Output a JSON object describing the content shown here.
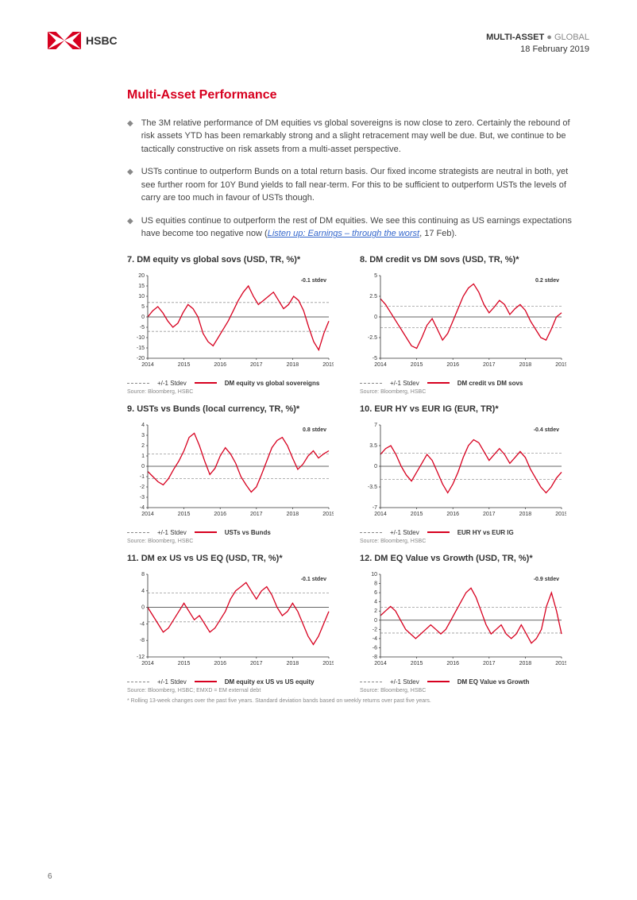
{
  "header": {
    "brand": "HSBC",
    "category_bold": "MULTI-ASSET",
    "category_light": "GLOBAL",
    "date": "18 February 2019"
  },
  "section_title": "Multi-Asset Performance",
  "bullets": [
    {
      "text": "The 3M relative performance of DM equities vs global sovereigns is now close to zero. Certainly the rebound of risk assets YTD has been remarkably strong and a slight retracement may well be due. But, we continue to be tactically constructive on risk assets from a multi-asset perspective."
    },
    {
      "text": "USTs continue to outperform Bunds on a total return basis. Our fixed income strategists are neutral in both, yet see further room for 10Y Bund yields to fall near-term. For this to be sufficient to outperform USTs the levels of carry are too much in favour of USTs though."
    },
    {
      "text_pre": "US equities continue to outperform the rest of DM equities. We see this continuing as US earnings expectations have become too negative now (",
      "link_text": "Listen up: Earnings – through the worst",
      "text_post": ", 17 Feb)."
    }
  ],
  "charts": [
    {
      "title": "7. DM equity vs global sovs (USD, TR, %)*",
      "stdev_label": "-0.1 stdev",
      "ylim": [
        -20,
        20
      ],
      "yticks": [
        -20,
        -15,
        -10,
        -5,
        0,
        5,
        10,
        15,
        20
      ],
      "xlim": [
        2014,
        2019
      ],
      "xticks": [
        2014,
        2015,
        2016,
        2017,
        2018,
        2019
      ],
      "band": [
        -7,
        7
      ],
      "line_color": "#d7001f",
      "band_color": "#999999",
      "grid_color": "#cccccc",
      "data": [
        0,
        3,
        5,
        2,
        -2,
        -5,
        -3,
        2,
        6,
        4,
        0,
        -8,
        -12,
        -14,
        -10,
        -6,
        -2,
        3,
        8,
        12,
        15,
        10,
        6,
        8,
        10,
        12,
        8,
        4,
        6,
        10,
        8,
        3,
        -5,
        -12,
        -16,
        -8,
        -2
      ],
      "legend_dash": "+/-1 Stdev",
      "legend_solid": "DM equity vs global sovereigns",
      "source": "Source: Bloomberg, HSBC"
    },
    {
      "title": "8. DM credit vs DM sovs (USD, TR, %)*",
      "stdev_label": "0.2 stdev",
      "ylim": [
        -5,
        5
      ],
      "yticks": [
        -5.0,
        -2.5,
        0.0,
        2.5,
        5.0
      ],
      "xlim": [
        2014,
        2019
      ],
      "xticks": [
        2014,
        2015,
        2016,
        2017,
        2018,
        2019
      ],
      "band": [
        -1.3,
        1.3
      ],
      "line_color": "#d7001f",
      "band_color": "#999999",
      "grid_color": "#cccccc",
      "data": [
        2.2,
        1.5,
        0.5,
        -0.5,
        -1.5,
        -2.5,
        -3.5,
        -3.8,
        -2.5,
        -1,
        -0.2,
        -1.5,
        -2.8,
        -2,
        -0.5,
        1,
        2.5,
        3.5,
        4,
        3,
        1.5,
        0.5,
        1.2,
        2,
        1.5,
        0.3,
        1,
        1.5,
        0.8,
        -0.5,
        -1.5,
        -2.5,
        -2.8,
        -1.5,
        0,
        0.5
      ],
      "legend_dash": "+/-1 Stdev",
      "legend_solid": "DM credit vs DM sovs",
      "source": "Source: Bloomberg, HSBC"
    },
    {
      "title": "9. USTs vs Bunds (local currency, TR, %)*",
      "stdev_label": "0.8 stdev",
      "ylim": [
        -4,
        4
      ],
      "yticks": [
        -4,
        -3,
        -2,
        -1,
        0,
        1,
        2,
        3,
        4
      ],
      "xlim": [
        2014,
        2019
      ],
      "xticks": [
        2014,
        2015,
        2016,
        2017,
        2018,
        2019
      ],
      "band": [
        -1.2,
        1.2
      ],
      "line_color": "#d7001f",
      "band_color": "#999999",
      "grid_color": "#cccccc",
      "data": [
        -0.5,
        -1,
        -1.5,
        -1.8,
        -1.2,
        -0.3,
        0.5,
        1.5,
        2.8,
        3.2,
        2,
        0.5,
        -0.8,
        -0.2,
        1,
        1.8,
        1.2,
        0.3,
        -1,
        -1.8,
        -2.5,
        -2,
        -0.8,
        0.5,
        1.8,
        2.5,
        2.8,
        2,
        0.8,
        -0.3,
        0.2,
        1,
        1.5,
        0.8,
        1.2,
        1.5
      ],
      "legend_dash": "+/-1 Stdev",
      "legend_solid": "USTs vs Bunds",
      "source": "Source: Bloomberg, HSBC"
    },
    {
      "title": "10. EUR HY vs EUR IG (EUR, TR)*",
      "stdev_label": "-0.4 stdev",
      "ylim": [
        -7,
        7
      ],
      "yticks": [
        -7.0,
        -3.5,
        0.0,
        3.5,
        7.0
      ],
      "xlim": [
        2014,
        2019
      ],
      "xticks": [
        2014,
        2015,
        2016,
        2017,
        2018,
        2019
      ],
      "band": [
        -2.2,
        2.2
      ],
      "line_color": "#d7001f",
      "band_color": "#999999",
      "grid_color": "#cccccc",
      "data": [
        2,
        3,
        3.5,
        2,
        0,
        -1.5,
        -2.5,
        -1,
        0.5,
        2,
        1,
        -1,
        -3,
        -4.5,
        -3,
        -1,
        1.5,
        3.5,
        4.5,
        4,
        2.5,
        1,
        2,
        3,
        2,
        0.5,
        1.5,
        2.5,
        1.5,
        -0.5,
        -2,
        -3.5,
        -4.5,
        -3.5,
        -2,
        -1
      ],
      "legend_dash": "+/-1 Stdev",
      "legend_solid": "EUR HY vs EUR IG",
      "source": "Source: Bloomberg, HSBC"
    },
    {
      "title": "11. DM ex US vs US EQ (USD, TR, %)*",
      "stdev_label": "-0.1 stdev",
      "ylim": [
        -12,
        8
      ],
      "yticks": [
        -12,
        -8,
        -4,
        0,
        4,
        8
      ],
      "xlim": [
        2014,
        2019
      ],
      "xticks": [
        2014,
        2015,
        2016,
        2017,
        2018,
        2019
      ],
      "band": [
        -3.5,
        3.5
      ],
      "line_color": "#d7001f",
      "band_color": "#999999",
      "grid_color": "#cccccc",
      "data": [
        0,
        -2,
        -4,
        -6,
        -5,
        -3,
        -1,
        1,
        -1,
        -3,
        -2,
        -4,
        -6,
        -5,
        -3,
        -1,
        2,
        4,
        5,
        6,
        4,
        2,
        4,
        5,
        3,
        0,
        -2,
        -1,
        1,
        -1,
        -4,
        -7,
        -9,
        -7,
        -4,
        -1
      ],
      "legend_dash": "+/-1 Stdev",
      "legend_solid": "DM equity ex US vs US equity",
      "source": "Source: Bloomberg, HSBC; EMXD = EM external debt"
    },
    {
      "title": "12. DM EQ Value vs Growth (USD, TR, %)*",
      "stdev_label": "-0.9 stdev",
      "ylim": [
        -8,
        10
      ],
      "yticks": [
        -8,
        -6,
        -4,
        -2,
        0,
        2,
        4,
        6,
        8,
        10
      ],
      "xlim": [
        2014,
        2019
      ],
      "xticks": [
        2014,
        2015,
        2016,
        2017,
        2018,
        2019
      ],
      "band": [
        -2.8,
        2.8
      ],
      "line_color": "#d7001f",
      "band_color": "#999999",
      "grid_color": "#cccccc",
      "data": [
        1,
        2,
        3,
        2,
        0,
        -2,
        -3,
        -4,
        -3,
        -2,
        -1,
        -2,
        -3,
        -2,
        0,
        2,
        4,
        6,
        7,
        5,
        2,
        -1,
        -3,
        -2,
        -1,
        -3,
        -4,
        -3,
        -1,
        -3,
        -5,
        -4,
        -2,
        3,
        6,
        2,
        -3
      ],
      "legend_dash": "+/-1 Stdev",
      "legend_solid": "DM EQ Value vs Growth",
      "source": "Source: Bloomberg, HSBC"
    }
  ],
  "footnote": "* Rolling 13-week changes over the past five years. Standard deviation bands based on weekly returns over past five years.",
  "page_number": "6",
  "style": {
    "brand_red": "#d7001f",
    "text_color": "#444444",
    "muted": "#888888",
    "chart_axis_color": "#333333",
    "chart_tick_fontsize": 7,
    "title_fontsize": 11
  }
}
